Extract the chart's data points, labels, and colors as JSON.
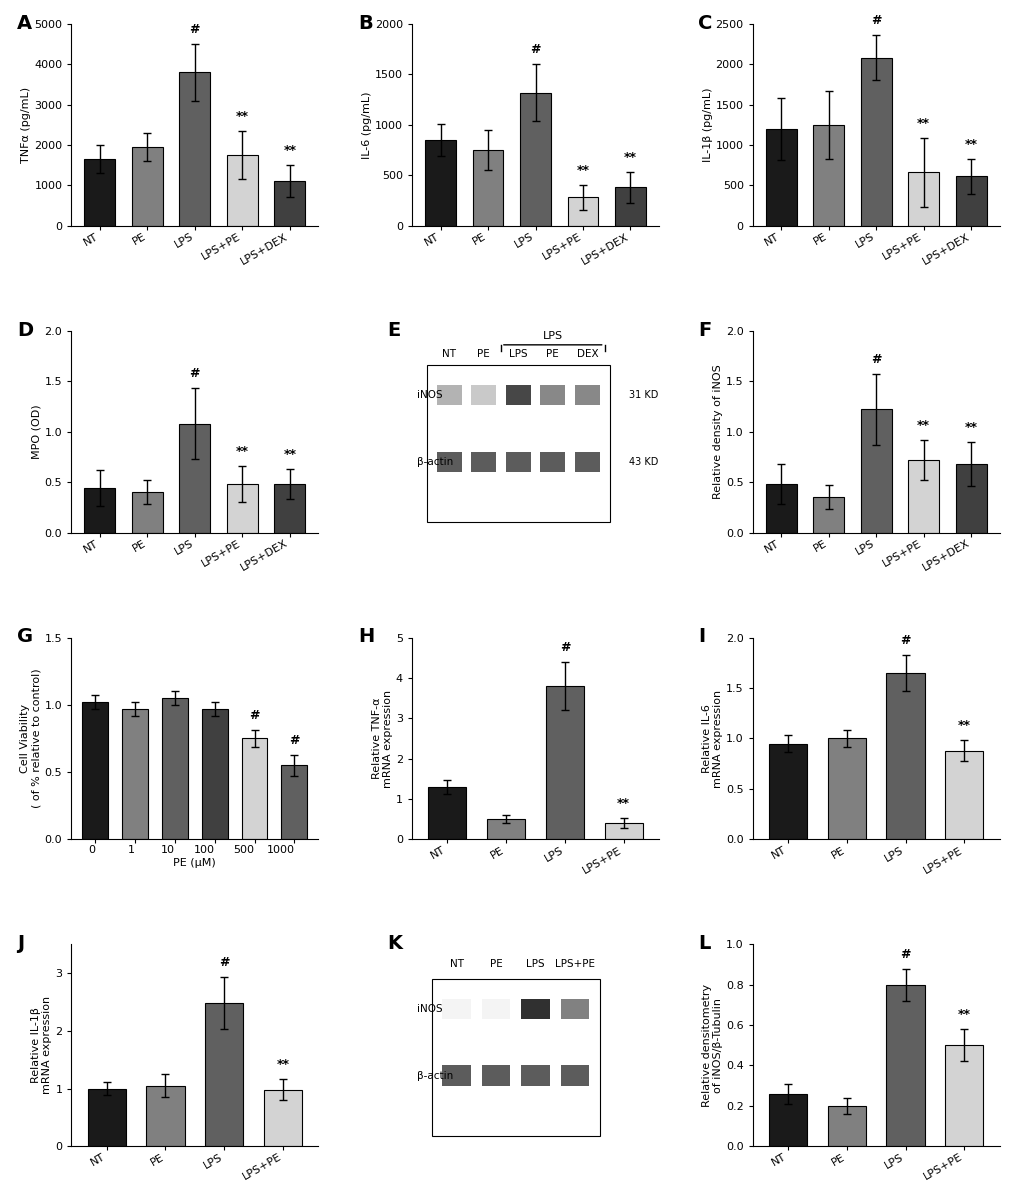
{
  "panel_A": {
    "label": "A",
    "categories": [
      "NT",
      "PE",
      "LPS",
      "LPS+PE",
      "LPS+DEX"
    ],
    "values": [
      1650,
      1950,
      3800,
      1750,
      1100
    ],
    "errors": [
      350,
      350,
      700,
      600,
      400
    ],
    "ylabel": "TNFα (pg/mL)",
    "ylim": [
      0,
      5000
    ],
    "yticks": [
      0,
      1000,
      2000,
      3000,
      4000,
      5000
    ],
    "sig": {
      "LPS": "#",
      "LPS+PE": "**",
      "LPS+DEX": "**"
    },
    "colors": [
      "#1a1a1a",
      "#808080",
      "#606060",
      "#d3d3d3",
      "#404040"
    ]
  },
  "panel_B": {
    "label": "B",
    "categories": [
      "NT",
      "PE",
      "LPS",
      "LPS+PE",
      "LPS+DEX"
    ],
    "values": [
      850,
      750,
      1320,
      280,
      380
    ],
    "errors": [
      160,
      200,
      280,
      120,
      150
    ],
    "ylabel": "IL-6 (pg/mL)",
    "ylim": [
      0,
      2000
    ],
    "yticks": [
      0,
      500,
      1000,
      1500,
      2000
    ],
    "sig": {
      "LPS": "#",
      "LPS+PE": "**",
      "LPS+DEX": "**"
    },
    "colors": [
      "#1a1a1a",
      "#808080",
      "#606060",
      "#d3d3d3",
      "#404040"
    ]
  },
  "panel_C": {
    "label": "C",
    "categories": [
      "NT",
      "PE",
      "LPS",
      "LPS+PE",
      "LPS+DEX"
    ],
    "values": [
      1200,
      1250,
      2080,
      660,
      610
    ],
    "errors": [
      380,
      420,
      280,
      430,
      220
    ],
    "ylabel": "IL-1β (pg/mL)",
    "ylim": [
      0,
      2500
    ],
    "yticks": [
      0,
      500,
      1000,
      1500,
      2000,
      2500
    ],
    "sig": {
      "LPS": "#",
      "LPS+PE": "**",
      "LPS+DEX": "**"
    },
    "colors": [
      "#1a1a1a",
      "#808080",
      "#606060",
      "#d3d3d3",
      "#404040"
    ]
  },
  "panel_D": {
    "label": "D",
    "categories": [
      "NT",
      "PE",
      "LPS",
      "LPS+PE",
      "LPS+DEX"
    ],
    "values": [
      0.44,
      0.4,
      1.08,
      0.48,
      0.48
    ],
    "errors": [
      0.18,
      0.12,
      0.35,
      0.18,
      0.15
    ],
    "ylabel": "MPO (OD)",
    "ylim": [
      0,
      2.0
    ],
    "yticks": [
      0.0,
      0.5,
      1.0,
      1.5,
      2.0
    ],
    "sig": {
      "LPS": "#",
      "LPS+PE": "**",
      "LPS+DEX": "**"
    },
    "colors": [
      "#1a1a1a",
      "#808080",
      "#606060",
      "#d3d3d3",
      "#404040"
    ]
  },
  "panel_F": {
    "label": "F",
    "categories": [
      "NT",
      "PE",
      "LPS",
      "LPS+PE",
      "LPS+DEX"
    ],
    "values": [
      0.48,
      0.35,
      1.22,
      0.72,
      0.68
    ],
    "errors": [
      0.2,
      0.12,
      0.35,
      0.2,
      0.22
    ],
    "ylabel": "Relative density of iNOS",
    "ylim": [
      0,
      2.0
    ],
    "yticks": [
      0.0,
      0.5,
      1.0,
      1.5,
      2.0
    ],
    "sig": {
      "LPS": "#",
      "LPS+PE": "**",
      "LPS+DEX": "**"
    },
    "colors": [
      "#1a1a1a",
      "#808080",
      "#606060",
      "#d3d3d3",
      "#404040"
    ]
  },
  "panel_G": {
    "label": "G",
    "categories": [
      "0",
      "1",
      "10",
      "100",
      "500",
      "1000"
    ],
    "values": [
      1.02,
      0.97,
      1.05,
      0.97,
      0.75,
      0.55
    ],
    "errors": [
      0.05,
      0.05,
      0.05,
      0.05,
      0.06,
      0.08
    ],
    "ylabel": "Cell Viability\n( of % relative to control)",
    "xlabel": "PE (μM)",
    "ylim": [
      0,
      1.5
    ],
    "yticks": [
      0.0,
      0.5,
      1.0,
      1.5
    ],
    "sig": {
      "500": "#",
      "1000": "#"
    },
    "colors": [
      "#1a1a1a",
      "#808080",
      "#606060",
      "#404040",
      "#d3d3d3",
      "#606060"
    ]
  },
  "panel_H": {
    "label": "H",
    "categories": [
      "NT",
      "PE",
      "LPS",
      "LPS+PE"
    ],
    "values": [
      1.3,
      0.5,
      3.8,
      0.4
    ],
    "errors": [
      0.18,
      0.1,
      0.6,
      0.12
    ],
    "ylabel": "Relative TNF-α\nmRNA expression",
    "ylim": [
      0,
      5
    ],
    "yticks": [
      0,
      1,
      2,
      3,
      4,
      5
    ],
    "sig": {
      "LPS": "#",
      "LPS+PE": "**"
    },
    "colors": [
      "#1a1a1a",
      "#808080",
      "#606060",
      "#d3d3d3"
    ]
  },
  "panel_I": {
    "label": "I",
    "categories": [
      "NT",
      "PE",
      "LPS",
      "LPS+PE"
    ],
    "values": [
      0.95,
      1.0,
      1.65,
      0.88
    ],
    "errors": [
      0.08,
      0.08,
      0.18,
      0.1
    ],
    "ylabel": "Relative IL-6\nmRNA expression",
    "ylim": [
      0,
      2.0
    ],
    "yticks": [
      0.0,
      0.5,
      1.0,
      1.5,
      2.0
    ],
    "sig": {
      "LPS": "#",
      "LPS+PE": "**"
    },
    "colors": [
      "#1a1a1a",
      "#808080",
      "#606060",
      "#d3d3d3"
    ]
  },
  "panel_J": {
    "label": "J",
    "categories": [
      "NT",
      "PE",
      "LPS",
      "LPS+PE"
    ],
    "values": [
      1.0,
      1.05,
      2.48,
      0.98
    ],
    "errors": [
      0.12,
      0.2,
      0.45,
      0.18
    ],
    "ylabel": "Relative IL-1β\nmRNA expression",
    "ylim": [
      0,
      3.5
    ],
    "yticks": [
      0,
      1,
      2,
      3
    ],
    "sig": {
      "LPS": "#",
      "LPS+PE": "**"
    },
    "colors": [
      "#1a1a1a",
      "#808080",
      "#606060",
      "#d3d3d3"
    ]
  },
  "panel_L": {
    "label": "L",
    "categories": [
      "NT",
      "PE",
      "LPS",
      "LPS+PE"
    ],
    "values": [
      0.26,
      0.2,
      0.8,
      0.5
    ],
    "errors": [
      0.05,
      0.04,
      0.08,
      0.08
    ],
    "ylabel": "Relative densitometry\nof iNOS/β-Tubulin",
    "ylim": [
      0,
      1.0
    ],
    "yticks": [
      0.0,
      0.2,
      0.4,
      0.6,
      0.8,
      1.0
    ],
    "sig": {
      "LPS": "#",
      "LPS+PE": "**"
    },
    "colors": [
      "#1a1a1a",
      "#808080",
      "#606060",
      "#d3d3d3"
    ]
  },
  "western_E": {
    "label": "E",
    "header": [
      "NT",
      "PE",
      "LPS",
      "PE",
      "DEX"
    ],
    "lps_span": [
      2,
      4
    ],
    "bands": {
      "iNOS": {
        "label": "iNOS",
        "kd": "31 KD"
      },
      "bactin": {
        "label": "β-actin",
        "kd": "43 KD"
      }
    }
  },
  "western_K": {
    "label": "K",
    "header": [
      "NT",
      "PE",
      "LPS",
      "LPS+PE"
    ],
    "bands": {
      "iNOS": {
        "label": "iNOS"
      },
      "bactin": {
        "label": "β-actin"
      }
    }
  }
}
